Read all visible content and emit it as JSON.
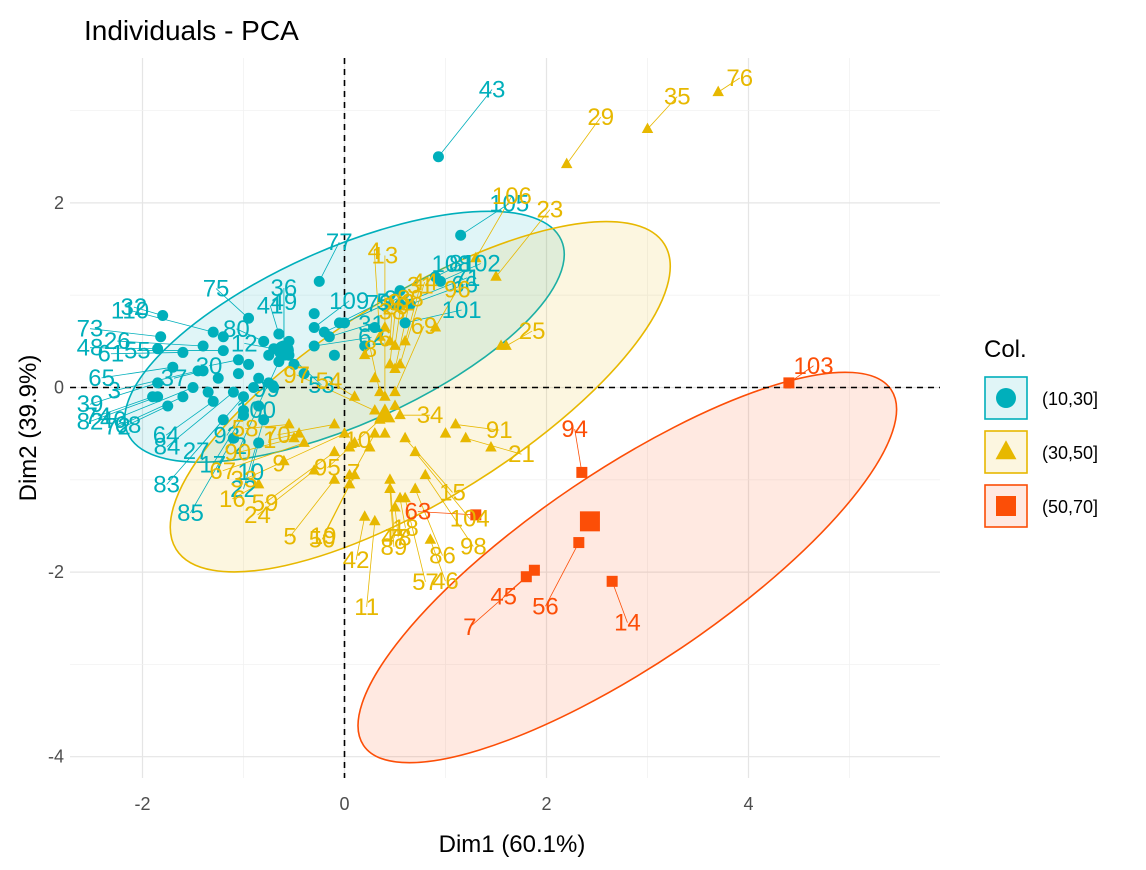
{
  "chart_data": {
    "type": "scatter",
    "title": "Individuals - PCA",
    "xlabel": "Dim1 (60.1%)",
    "ylabel": "Dim2 (39.9%)",
    "xlim": [
      -2.5,
      5.9
    ],
    "ylim": [
      -4.1,
      3.55
    ],
    "xticks": [
      -2,
      0,
      2,
      4
    ],
    "yticks": [
      -4,
      -2,
      0,
      2
    ],
    "grid": true,
    "reference_lines": [
      {
        "axis": "x",
        "value": 0,
        "style": "dashed"
      },
      {
        "axis": "y",
        "value": 0,
        "style": "dashed"
      }
    ],
    "legend": {
      "title": "Col.",
      "position": "right",
      "entries": [
        {
          "label": "(10,30]",
          "color": "#00AFBB",
          "shape": "circle"
        },
        {
          "label": "(30,50]",
          "color": "#E7B800",
          "shape": "triangle"
        },
        {
          "label": "(50,70]",
          "color": "#FC4E07",
          "shape": "square"
        }
      ]
    },
    "series": [
      {
        "name": "(10,30]",
        "color": "#00AFBB",
        "shape": "circle",
        "ellipse": {
          "cx": 0.0,
          "cy": 0.55,
          "rx": 2.35,
          "ry": 0.95,
          "angle_deg": 24
        },
        "centroid": [
          -0.6,
          0.4
        ],
        "points": [
          {
            "x": -1.8,
            "y": 0.78,
            "label": "32"
          },
          {
            "x": -0.95,
            "y": 0.75,
            "label": "75"
          },
          {
            "x": -0.6,
            "y": 0.45,
            "label": "36"
          },
          {
            "x": -0.2,
            "y": 0.6,
            "label": "52"
          },
          {
            "x": 0.93,
            "y": 2.5,
            "label": "43"
          },
          {
            "x": 0.9,
            "y": 1.2,
            "label": "81"
          },
          {
            "x": 0.95,
            "y": 1.15,
            "label": "102"
          },
          {
            "x": 0.6,
            "y": 0.7,
            "label": "101"
          },
          {
            "x": -1.82,
            "y": 0.55,
            "label": "73"
          },
          {
            "x": -1.3,
            "y": 0.6,
            "label": "110"
          },
          {
            "x": -0.65,
            "y": 0.58,
            "label": "41"
          },
          {
            "x": -0.05,
            "y": 0.7,
            "label": "79"
          },
          {
            "x": 0.65,
            "y": 0.9,
            "label": "66"
          },
          {
            "x": -1.85,
            "y": 0.42,
            "label": "48"
          },
          {
            "x": -1.4,
            "y": 0.45,
            "label": "26"
          },
          {
            "x": -0.8,
            "y": 0.5,
            "label": "80"
          },
          {
            "x": -0.3,
            "y": 0.65,
            "label": "109"
          },
          {
            "x": 1.15,
            "y": 1.65,
            "label": "105"
          },
          {
            "x": -1.6,
            "y": 0.38,
            "label": "61"
          },
          {
            "x": -1.2,
            "y": 0.4,
            "label": "55"
          },
          {
            "x": -0.7,
            "y": 0.42,
            "label": "12"
          },
          {
            "x": -0.25,
            "y": 1.15,
            "label": "77"
          },
          {
            "x": 0.55,
            "y": 1.05,
            "label": "108"
          },
          {
            "x": -1.7,
            "y": 0.22,
            "label": "65"
          },
          {
            "x": -1.45,
            "y": 0.18,
            "label": "3"
          },
          {
            "x": -1.05,
            "y": 0.3,
            "label": "30"
          },
          {
            "x": -0.55,
            "y": 0.35,
            "label": "53"
          },
          {
            "x": 0.0,
            "y": 0.7,
            "label": "28"
          },
          {
            "x": 0.55,
            "y": 0.9,
            "label": "71"
          },
          {
            "x": -1.85,
            "y": 0.05,
            "label": "39"
          },
          {
            "x": -1.4,
            "y": 0.18,
            "label": "37"
          },
          {
            "x": -0.6,
            "y": 0.45,
            "label": "49"
          },
          {
            "x": -0.3,
            "y": 0.45,
            "label": "62"
          },
          {
            "x": -1.85,
            "y": -0.1,
            "label": "82"
          },
          {
            "x": -1.5,
            "y": 0.0,
            "label": "40"
          },
          {
            "x": -0.65,
            "y": 0.28,
            "label": "99"
          },
          {
            "x": -0.15,
            "y": 0.55,
            "label": "31"
          },
          {
            "x": -1.9,
            "y": -0.1,
            "label": "74"
          },
          {
            "x": -1.6,
            "y": -0.1,
            "label": "72"
          },
          {
            "x": -1.1,
            "y": -0.05,
            "label": "84"
          },
          {
            "x": -0.75,
            "y": 0.05,
            "label": "100"
          },
          {
            "x": -1.75,
            "y": -0.2,
            "label": "68"
          },
          {
            "x": -1.3,
            "y": -0.15,
            "label": "64"
          },
          {
            "x": -1.0,
            "y": -0.1,
            "label": "27"
          },
          {
            "x": -1.2,
            "y": -0.35,
            "label": "83"
          },
          {
            "x": -1.0,
            "y": -0.25,
            "label": "93"
          },
          {
            "x": -0.85,
            "y": -0.2,
            "label": "2"
          },
          {
            "x": -1.0,
            "y": -0.3,
            "label": "17"
          },
          {
            "x": -0.8,
            "y": -0.35,
            "label": "22"
          },
          {
            "x": -1.1,
            "y": -0.55,
            "label": "85"
          },
          {
            "x": -0.85,
            "y": -0.6,
            "label": "10"
          },
          {
            "x": -1.05,
            "y": 0.15,
            "label": ""
          },
          {
            "x": -0.95,
            "y": 0.25,
            "label": ""
          },
          {
            "x": -0.85,
            "y": 0.1,
            "label": ""
          },
          {
            "x": -0.75,
            "y": 0.35,
            "label": ""
          },
          {
            "x": -0.5,
            "y": 0.25,
            "label": ""
          },
          {
            "x": -0.4,
            "y": 0.15,
            "label": ""
          },
          {
            "x": -0.9,
            "y": 0.0,
            "label": ""
          },
          {
            "x": -0.7,
            "y": 0.0,
            "label": ""
          },
          {
            "x": -0.55,
            "y": 0.5,
            "label": ""
          },
          {
            "x": -1.2,
            "y": 0.55,
            "label": ""
          },
          {
            "x": -0.3,
            "y": 0.8,
            "label": ""
          },
          {
            "x": 0.3,
            "y": 0.65,
            "label": ""
          },
          {
            "x": 0.2,
            "y": 0.45,
            "label": ""
          },
          {
            "x": -0.1,
            "y": 0.35,
            "label": ""
          },
          {
            "x": -1.35,
            "y": -0.05,
            "label": ""
          },
          {
            "x": -1.25,
            "y": 0.1,
            "label": ""
          }
        ]
      },
      {
        "name": "(30,50]",
        "color": "#E7B800",
        "shape": "triangle",
        "ellipse": {
          "cx": 0.75,
          "cy": -0.1,
          "rx": 2.85,
          "ry": 1.1,
          "angle_deg": 32
        },
        "centroid": [
          0.4,
          -0.3
        ],
        "points": [
          {
            "x": 3.7,
            "y": 3.2,
            "label": "76"
          },
          {
            "x": 3.0,
            "y": 2.8,
            "label": "35"
          },
          {
            "x": 2.2,
            "y": 2.42,
            "label": "29"
          },
          {
            "x": 1.3,
            "y": 1.4,
            "label": "106"
          },
          {
            "x": 1.5,
            "y": 1.2,
            "label": "23"
          },
          {
            "x": 1.6,
            "y": 0.45,
            "label": "25"
          },
          {
            "x": 0.9,
            "y": 0.65,
            "label": "96"
          },
          {
            "x": 0.6,
            "y": 0.5,
            "label": "31"
          },
          {
            "x": 0.4,
            "y": 0.65,
            "label": "13"
          },
          {
            "x": 0.35,
            "y": 0.55,
            "label": "4"
          },
          {
            "x": 0.45,
            "y": 0.5,
            "label": "38"
          },
          {
            "x": 0.5,
            "y": 0.45,
            "label": "92"
          },
          {
            "x": 0.45,
            "y": 0.25,
            "label": "20"
          },
          {
            "x": 0.5,
            "y": 0.2,
            "label": "88"
          },
          {
            "x": 0.55,
            "y": 0.25,
            "label": "44"
          },
          {
            "x": 0.1,
            "y": -0.1,
            "label": "54"
          },
          {
            "x": 0.35,
            "y": -0.05,
            "label": "8"
          },
          {
            "x": 0.4,
            "y": -0.1,
            "label": "6"
          },
          {
            "x": 0.5,
            "y": -0.05,
            "label": "69"
          },
          {
            "x": 0.3,
            "y": -0.25,
            "label": "97"
          },
          {
            "x": 0.55,
            "y": -0.3,
            "label": "34"
          },
          {
            "x": 1.1,
            "y": -0.4,
            "label": "91"
          },
          {
            "x": 1.2,
            "y": -0.55,
            "label": "21"
          },
          {
            "x": 0.6,
            "y": -0.55,
            "label": "15"
          },
          {
            "x": 0.7,
            "y": -0.7,
            "label": "104"
          },
          {
            "x": 0.35,
            "y": -0.35,
            "label": "10"
          },
          {
            "x": 0.3,
            "y": -0.5,
            "label": "7"
          },
          {
            "x": -0.1,
            "y": -0.4,
            "label": "70"
          },
          {
            "x": 0.0,
            "y": -0.5,
            "label": "9"
          },
          {
            "x": -0.1,
            "y": -0.7,
            "label": "59"
          },
          {
            "x": 0.05,
            "y": -0.65,
            "label": "95"
          },
          {
            "x": 0.1,
            "y": -0.6,
            "label": ""
          },
          {
            "x": 0.25,
            "y": -0.65,
            "label": ""
          },
          {
            "x": 0.4,
            "y": -0.5,
            "label": ""
          },
          {
            "x": 0.8,
            "y": -0.95,
            "label": "98"
          },
          {
            "x": 1.45,
            "y": -0.65,
            "label": ""
          },
          {
            "x": 1.0,
            "y": -0.5,
            "label": ""
          },
          {
            "x": 0.45,
            "y": -1.1,
            "label": "89"
          },
          {
            "x": -0.1,
            "y": -1.0,
            "label": "5"
          },
          {
            "x": 0.05,
            "y": -0.95,
            "label": ""
          },
          {
            "x": -0.85,
            "y": -1.05,
            "label": "16"
          },
          {
            "x": -0.6,
            "y": -0.8,
            "label": "33"
          },
          {
            "x": -0.5,
            "y": -0.55,
            "label": "90"
          },
          {
            "x": -0.3,
            "y": -0.9,
            "label": "24"
          },
          {
            "x": 0.3,
            "y": -1.45,
            "label": "11"
          },
          {
            "x": 0.55,
            "y": -1.2,
            "label": "18"
          },
          {
            "x": 0.85,
            "y": -1.65,
            "label": "46"
          },
          {
            "x": 0.45,
            "y": -1.0,
            "label": "47"
          },
          {
            "x": 0.7,
            "y": -1.1,
            "label": "86"
          },
          {
            "x": 0.6,
            "y": -1.2,
            "label": "57"
          },
          {
            "x": 0.5,
            "y": -1.3,
            "label": "78"
          },
          {
            "x": 0.2,
            "y": -1.4,
            "label": "42"
          },
          {
            "x": 0.05,
            "y": -1.05,
            "label": "19"
          },
          {
            "x": 0.1,
            "y": -0.95,
            "label": "50"
          },
          {
            "x": -0.4,
            "y": -0.6,
            "label": "67"
          },
          {
            "x": -0.45,
            "y": -0.5,
            "label": "1"
          },
          {
            "x": -0.55,
            "y": -0.4,
            "label": "58"
          },
          {
            "x": 1.55,
            "y": 0.45,
            "label": ""
          },
          {
            "x": 0.2,
            "y": 0.35,
            "label": ""
          },
          {
            "x": 0.3,
            "y": 0.1,
            "label": ""
          },
          {
            "x": 0.5,
            "y": -0.2,
            "label": ""
          }
        ]
      },
      {
        "name": "(50,70]",
        "color": "#FC4E07",
        "shape": "square",
        "ellipse": {
          "cx": 2.8,
          "cy": -1.95,
          "rx": 3.15,
          "ry": 1.05,
          "angle_deg": 34
        },
        "centroid": [
          2.43,
          -1.45
        ],
        "points": [
          {
            "x": 4.4,
            "y": 0.05,
            "label": "103"
          },
          {
            "x": 2.35,
            "y": -0.92,
            "label": "94"
          },
          {
            "x": 1.3,
            "y": -1.38,
            "label": "63"
          },
          {
            "x": 2.32,
            "y": -1.68,
            "label": "56"
          },
          {
            "x": 1.88,
            "y": -1.98,
            "label": "7"
          },
          {
            "x": 1.8,
            "y": -2.05,
            "label": "45"
          },
          {
            "x": 2.65,
            "y": -2.1,
            "label": "14"
          }
        ]
      }
    ]
  }
}
